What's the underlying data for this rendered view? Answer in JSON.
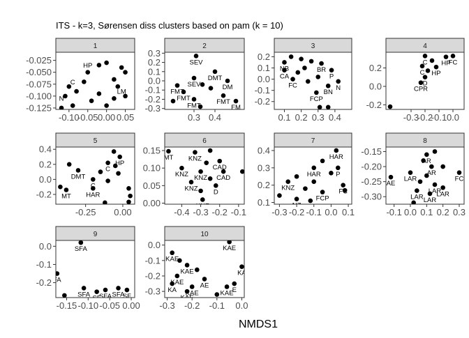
{
  "figure": {
    "title": "ITS - k=3, Sørensen diss clusters based on pam (k = 10)",
    "xlabel": "NMDS1",
    "point_color": "#000000",
    "strip_fill": "#d9d9d9",
    "panel_border": "#333333"
  },
  "chart_data": [
    {
      "type": "scatter",
      "panel": "1",
      "xlim": [
        -0.135,
        0.075
      ],
      "ylim": [
        -0.128,
        -0.008
      ],
      "xticks": [
        -0.1,
        -0.05,
        0.0,
        0.05
      ],
      "xtick_labels": [
        "-0.10",
        "-0.05",
        "0.00",
        "0.05"
      ],
      "yticks": [
        -0.025,
        -0.05,
        -0.075,
        -0.1,
        -0.125
      ],
      "ytick_labels": [
        "-0.025",
        "-0.050",
        "-0.075",
        "-0.100",
        "-0.125"
      ],
      "points": [
        {
          "x": -0.02,
          "y": -0.035,
          "label": ""
        },
        {
          "x": 0.0,
          "y": -0.03,
          "label": ""
        },
        {
          "x": 0.04,
          "y": -0.04,
          "label": ""
        },
        {
          "x": 0.05,
          "y": -0.05,
          "label": ""
        },
        {
          "x": -0.05,
          "y": -0.05,
          "label": ""
        },
        {
          "x": 0.02,
          "y": -0.065,
          "label": ""
        },
        {
          "x": -0.06,
          "y": -0.07,
          "label": ""
        },
        {
          "x": -0.1,
          "y": -0.08,
          "label": ""
        },
        {
          "x": 0.03,
          "y": -0.08,
          "label": ""
        },
        {
          "x": -0.08,
          "y": -0.09,
          "label": ""
        },
        {
          "x": -0.02,
          "y": -0.095,
          "label": ""
        },
        {
          "x": 0.05,
          "y": -0.1,
          "label": ""
        },
        {
          "x": -0.11,
          "y": -0.1,
          "label": ""
        },
        {
          "x": -0.04,
          "y": -0.11,
          "label": ""
        },
        {
          "x": 0.0,
          "y": -0.12,
          "label": ""
        },
        {
          "x": -0.09,
          "y": -0.12,
          "label": ""
        },
        {
          "x": -0.12,
          "y": -0.125,
          "label": ""
        },
        {
          "x": 0.02,
          "y": -0.105,
          "label": ""
        }
      ],
      "annotations": [
        {
          "x": -0.05,
          "y": -0.04,
          "text": "HP"
        },
        {
          "x": -0.09,
          "y": -0.075,
          "text": "C"
        },
        {
          "x": 0.04,
          "y": -0.095,
          "text": "LM"
        },
        {
          "x": -0.12,
          "y": -0.11,
          "text": "N"
        }
      ]
    },
    {
      "type": "scatter",
      "panel": "2",
      "xlim": [
        0.16,
        0.54
      ],
      "ylim": [
        -0.31,
        0.31
      ],
      "xticks": [
        0.3,
        0.4
      ],
      "xtick_labels": [
        "0.3",
        "0.4"
      ],
      "yticks": [
        0.3,
        0.2,
        0.1,
        0.0,
        -0.1,
        -0.2,
        -0.3
      ],
      "ytick_labels": [
        "0.3",
        "0.2",
        "0.1",
        "0.0",
        "-0.1",
        "-0.2",
        "-0.3"
      ],
      "points": [
        {
          "x": 0.31,
          "y": 0.27,
          "label": "SEV"
        },
        {
          "x": 0.4,
          "y": 0.1,
          "label": "DMT"
        },
        {
          "x": 0.3,
          "y": 0.03,
          "label": "SEV"
        },
        {
          "x": 0.46,
          "y": 0.0,
          "label": "DM"
        },
        {
          "x": 0.22,
          "y": -0.05,
          "label": "FMT"
        },
        {
          "x": 0.34,
          "y": -0.04,
          "label": ""
        },
        {
          "x": 0.38,
          "y": -0.08,
          "label": ""
        },
        {
          "x": 0.25,
          "y": -0.12,
          "label": "FMT"
        },
        {
          "x": 0.44,
          "y": -0.16,
          "label": "FMT"
        },
        {
          "x": 0.3,
          "y": -0.2,
          "label": "FMT"
        },
        {
          "x": 0.5,
          "y": -0.22,
          "label": "FM"
        },
        {
          "x": 0.2,
          "y": -0.22,
          "label": ""
        },
        {
          "x": 0.33,
          "y": -0.28,
          "label": ""
        }
      ],
      "annotations": []
    },
    {
      "type": "scatter",
      "panel": "3",
      "xlim": [
        0.04,
        0.5
      ],
      "ylim": [
        -0.27,
        0.24
      ],
      "xticks": [
        0.1,
        0.2,
        0.3,
        0.4
      ],
      "xtick_labels": [
        "0.1",
        "0.2",
        "0.3",
        "0.4"
      ],
      "yticks": [
        0.2,
        0.1,
        0.0,
        -0.1,
        -0.2
      ],
      "ytick_labels": [
        "0.2",
        "0.1",
        "0.0",
        "-0.1",
        "-0.2"
      ],
      "points": [
        {
          "x": 0.1,
          "y": 0.15,
          "label": "NB"
        },
        {
          "x": 0.14,
          "y": 0.2,
          "label": ""
        },
        {
          "x": 0.2,
          "y": 0.18,
          "label": ""
        },
        {
          "x": 0.26,
          "y": 0.16,
          "label": ""
        },
        {
          "x": 0.32,
          "y": 0.14,
          "label": "BR"
        },
        {
          "x": 0.1,
          "y": 0.08,
          "label": "CA"
        },
        {
          "x": 0.18,
          "y": 0.06,
          "label": ""
        },
        {
          "x": 0.22,
          "y": 0.1,
          "label": ""
        },
        {
          "x": 0.38,
          "y": 0.08,
          "label": "P"
        },
        {
          "x": 0.15,
          "y": 0.0,
          "label": "FC"
        },
        {
          "x": 0.24,
          "y": -0.02,
          "label": ""
        },
        {
          "x": 0.3,
          "y": 0.02,
          "label": ""
        },
        {
          "x": 0.42,
          "y": -0.02,
          "label": "N"
        },
        {
          "x": 0.36,
          "y": -0.06,
          "label": "BN"
        },
        {
          "x": 0.29,
          "y": -0.12,
          "label": "FCP"
        },
        {
          "x": 0.31,
          "y": -0.25,
          "label": ""
        },
        {
          "x": 0.36,
          "y": -0.25,
          "label": ""
        }
      ],
      "annotations": []
    },
    {
      "type": "scatter",
      "panel": "4",
      "xlim": [
        -0.48,
        0.08
      ],
      "ylim": [
        -0.25,
        0.37
      ],
      "xticks": [
        -0.3,
        -0.2,
        -0.1,
        0.0
      ],
      "xtick_labels": [
        "-0.3",
        "-0.2",
        "-0.1",
        "0.0"
      ],
      "yticks": [
        0.2,
        0.0,
        -0.2
      ],
      "ytick_labels": [
        "0.2",
        "0.0",
        "-0.2"
      ],
      "points": [
        {
          "x": -0.2,
          "y": 0.33,
          "label": "C"
        },
        {
          "x": -0.05,
          "y": 0.32,
          "label": "HP"
        },
        {
          "x": 0.0,
          "y": 0.33,
          "label": "FC"
        },
        {
          "x": -0.15,
          "y": 0.28,
          "label": ""
        },
        {
          "x": -0.22,
          "y": 0.22,
          "label": "C"
        },
        {
          "x": -0.12,
          "y": 0.21,
          "label": "HP"
        },
        {
          "x": -0.18,
          "y": 0.17,
          "label": ""
        },
        {
          "x": -0.2,
          "y": 0.1,
          "label": "D"
        },
        {
          "x": -0.23,
          "y": 0.04,
          "label": "CPR"
        },
        {
          "x": -0.45,
          "y": -0.22,
          "label": ""
        }
      ],
      "annotations": []
    },
    {
      "type": "scatter",
      "panel": "5",
      "xlim": [
        -0.45,
        0.08
      ],
      "ylim": [
        -0.33,
        0.43
      ],
      "xticks": [
        -0.25,
        0.0
      ],
      "xtick_labels": [
        "-0.25",
        "0.00"
      ],
      "yticks": [
        0.4,
        0.2,
        0.0,
        -0.2
      ],
      "ytick_labels": [
        "0.4",
        "0.2",
        "0.0",
        "-0.2"
      ],
      "points": [
        {
          "x": -0.06,
          "y": 0.37,
          "label": ""
        },
        {
          "x": -0.02,
          "y": 0.3,
          "label": "HP"
        },
        {
          "x": -0.36,
          "y": 0.2,
          "label": ""
        },
        {
          "x": -0.1,
          "y": 0.22,
          "label": "C"
        },
        {
          "x": -0.05,
          "y": 0.18,
          "label": ""
        },
        {
          "x": -0.3,
          "y": 0.12,
          "label": "DMT"
        },
        {
          "x": -0.15,
          "y": 0.1,
          "label": ""
        },
        {
          "x": -0.03,
          "y": 0.08,
          "label": ""
        },
        {
          "x": -0.2,
          "y": 0.0,
          "label": "C"
        },
        {
          "x": -0.1,
          "y": -0.02,
          "label": ""
        },
        {
          "x": -0.42,
          "y": -0.1,
          "label": ""
        },
        {
          "x": -0.38,
          "y": -0.14,
          "label": "MT"
        },
        {
          "x": -0.2,
          "y": -0.12,
          "label": "HAR"
        },
        {
          "x": 0.04,
          "y": -0.12,
          "label": ""
        },
        {
          "x": 0.05,
          "y": -0.22,
          "label": ""
        },
        {
          "x": 0.04,
          "y": -0.3,
          "label": "GN"
        },
        {
          "x": -0.12,
          "y": -0.31,
          "label": ""
        }
      ],
      "annotations": []
    },
    {
      "type": "scatter",
      "panel": "6",
      "xlim": [
        -0.49,
        -0.07
      ],
      "ylim": [
        -0.003,
        0.16
      ],
      "xticks": [
        -0.4,
        -0.3,
        -0.2,
        -0.1
      ],
      "xtick_labels": [
        "-0.4",
        "-0.3",
        "-0.2",
        "-0.1"
      ],
      "yticks": [
        0.15,
        0.1,
        0.05,
        0.0
      ],
      "ytick_labels": [
        "0.15",
        "0.10",
        "0.05",
        "0.00"
      ],
      "points": [
        {
          "x": -0.47,
          "y": 0.148,
          "label": "MT"
        },
        {
          "x": -0.25,
          "y": 0.15,
          "label": ""
        },
        {
          "x": -0.33,
          "y": 0.145,
          "label": "KNZ"
        },
        {
          "x": -0.2,
          "y": 0.12,
          "label": "CAD"
        },
        {
          "x": -0.27,
          "y": 0.115,
          "label": ""
        },
        {
          "x": -0.4,
          "y": 0.1,
          "label": "KNZ"
        },
        {
          "x": -0.18,
          "y": 0.09,
          "label": "CAD"
        },
        {
          "x": -0.3,
          "y": 0.09,
          "label": "KNZ"
        },
        {
          "x": -0.25,
          "y": 0.07,
          "label": ""
        },
        {
          "x": -0.35,
          "y": 0.06,
          "label": "KNZ"
        },
        {
          "x": -0.22,
          "y": 0.05,
          "label": "D"
        },
        {
          "x": -0.3,
          "y": 0.035,
          "label": ""
        },
        {
          "x": -0.29,
          "y": 0.01,
          "label": "KNZ"
        },
        {
          "x": -0.08,
          "y": 0.09,
          "label": ""
        }
      ],
      "annotations": []
    },
    {
      "type": "scatter",
      "panel": "7",
      "xlim": [
        -0.33,
        0.12
      ],
      "ylim": [
        0.09,
        0.42
      ],
      "xticks": [
        -0.3,
        -0.2,
        -0.1,
        0.0,
        0.1
      ],
      "xtick_labels": [
        "-0.3",
        "-0.2",
        "-0.1",
        "0.0",
        "0.1"
      ],
      "yticks": [
        0.4,
        0.3,
        0.2,
        0.1
      ],
      "ytick_labels": [
        "0.4",
        "0.3",
        "0.2",
        "0.1"
      ],
      "points": [
        {
          "x": 0.03,
          "y": 0.4,
          "label": "HAR"
        },
        {
          "x": -0.05,
          "y": 0.34,
          "label": ""
        },
        {
          "x": 0.04,
          "y": 0.3,
          "label": "P"
        },
        {
          "x": -0.1,
          "y": 0.3,
          "label": "HAR"
        },
        {
          "x": 0.0,
          "y": 0.27,
          "label": ""
        },
        {
          "x": -0.2,
          "y": 0.25,
          "label": ""
        },
        {
          "x": -0.25,
          "y": 0.22,
          "label": "KNZ"
        },
        {
          "x": -0.1,
          "y": 0.22,
          "label": ""
        },
        {
          "x": 0.07,
          "y": 0.2,
          "label": "FC"
        },
        {
          "x": -0.15,
          "y": 0.18,
          "label": ""
        },
        {
          "x": -0.05,
          "y": 0.16,
          "label": "FCP"
        },
        {
          "x": 0.08,
          "y": 0.17,
          "label": ""
        },
        {
          "x": -0.3,
          "y": 0.14,
          "label": ""
        },
        {
          "x": -0.2,
          "y": 0.12,
          "label": "NZ"
        },
        {
          "x": -0.12,
          "y": 0.11,
          "label": ""
        }
      ],
      "annotations": []
    },
    {
      "type": "scatter",
      "panel": "8",
      "xlim": [
        -0.15,
        0.33
      ],
      "ylim": [
        -0.325,
        -0.135
      ],
      "xticks": [
        -0.1,
        0.0,
        0.1,
        0.2,
        0.3
      ],
      "xtick_labels": [
        "-0.1",
        "0.0",
        "0.1",
        "0.2",
        "0.3"
      ],
      "yticks": [
        -0.15,
        -0.2,
        -0.25,
        -0.3
      ],
      "ytick_labels": [
        "-0.15",
        "-0.20",
        "-0.25",
        "-0.30"
      ],
      "points": [
        {
          "x": 0.1,
          "y": -0.16,
          "label": "AR"
        },
        {
          "x": 0.15,
          "y": -0.15,
          "label": ""
        },
        {
          "x": 0.08,
          "y": -0.18,
          "label": ""
        },
        {
          "x": 0.13,
          "y": -0.2,
          "label": "AR"
        },
        {
          "x": 0.2,
          "y": -0.2,
          "label": ""
        },
        {
          "x": 0.0,
          "y": -0.22,
          "label": "LAR"
        },
        {
          "x": 0.1,
          "y": -0.23,
          "label": ""
        },
        {
          "x": 0.3,
          "y": -0.22,
          "label": "FC"
        },
        {
          "x": -0.12,
          "y": -0.235,
          "label": "AE"
        },
        {
          "x": 0.06,
          "y": -0.25,
          "label": ""
        },
        {
          "x": 0.15,
          "y": -0.26,
          "label": "LAR"
        },
        {
          "x": 0.2,
          "y": -0.27,
          "label": "LAR"
        },
        {
          "x": 0.04,
          "y": -0.28,
          "label": "LAR"
        },
        {
          "x": 0.12,
          "y": -0.29,
          "label": "LAR"
        },
        {
          "x": 0.02,
          "y": -0.32,
          "label": ""
        }
      ],
      "annotations": []
    },
    {
      "type": "scatter",
      "panel": "9",
      "xlim": [
        -0.175,
        0.008
      ],
      "ylim": [
        -0.282,
        0.032
      ],
      "xticks": [
        -0.15,
        -0.1,
        -0.05,
        0.0
      ],
      "xtick_labels": [
        "-0.15",
        "-0.10",
        "-0.05",
        "0.00"
      ],
      "yticks": [
        0.0,
        -0.1,
        -0.2
      ],
      "ytick_labels": [
        "0.0",
        "-0.1",
        "-0.2"
      ],
      "points": [
        {
          "x": -0.117,
          "y": 0.02,
          "label": "SFA"
        },
        {
          "x": -0.172,
          "y": -0.15,
          "label": "FA"
        },
        {
          "x": -0.155,
          "y": -0.27,
          "label": ""
        },
        {
          "x": -0.11,
          "y": -0.23,
          "label": "SFA"
        },
        {
          "x": -0.08,
          "y": -0.25,
          "label": "SF"
        },
        {
          "x": -0.06,
          "y": -0.24,
          "label": "SFA"
        },
        {
          "x": -0.03,
          "y": -0.23,
          "label": "SFA"
        },
        {
          "x": -0.01,
          "y": -0.24,
          "label": "SF"
        }
      ],
      "annotations": []
    },
    {
      "type": "scatter",
      "panel": "10",
      "xlim": [
        -0.31,
        0.01
      ],
      "ylim": [
        -0.34,
        0.03
      ],
      "xticks": [
        -0.3,
        -0.2,
        -0.1,
        0.0
      ],
      "xtick_labels": [
        "-0.3",
        "-0.2",
        "-0.1",
        "0.0"
      ],
      "yticks": [
        0.0,
        -0.1,
        -0.2,
        -0.3
      ],
      "ytick_labels": [
        "0.0",
        "-0.1",
        "-0.2",
        "-0.3"
      ],
      "points": [
        {
          "x": -0.05,
          "y": 0.02,
          "label": "KAE"
        },
        {
          "x": -0.28,
          "y": -0.05,
          "label": "KAE"
        },
        {
          "x": 0.0,
          "y": -0.14,
          "label": "KA"
        },
        {
          "x": -0.25,
          "y": -0.1,
          "label": ""
        },
        {
          "x": -0.22,
          "y": -0.13,
          "label": "KAE"
        },
        {
          "x": -0.18,
          "y": -0.16,
          "label": ""
        },
        {
          "x": -0.26,
          "y": -0.2,
          "label": "KAE"
        },
        {
          "x": -0.15,
          "y": -0.22,
          "label": "AE"
        },
        {
          "x": -0.28,
          "y": -0.25,
          "label": "KA"
        },
        {
          "x": -0.2,
          "y": -0.27,
          "label": "KAE"
        },
        {
          "x": -0.03,
          "y": -0.25,
          "label": "E"
        },
        {
          "x": -0.06,
          "y": -0.27,
          "label": "KAE"
        },
        {
          "x": -0.22,
          "y": -0.3,
          "label": "KAE"
        },
        {
          "x": -0.1,
          "y": -0.32,
          "label": ""
        }
      ],
      "annotations": []
    }
  ]
}
